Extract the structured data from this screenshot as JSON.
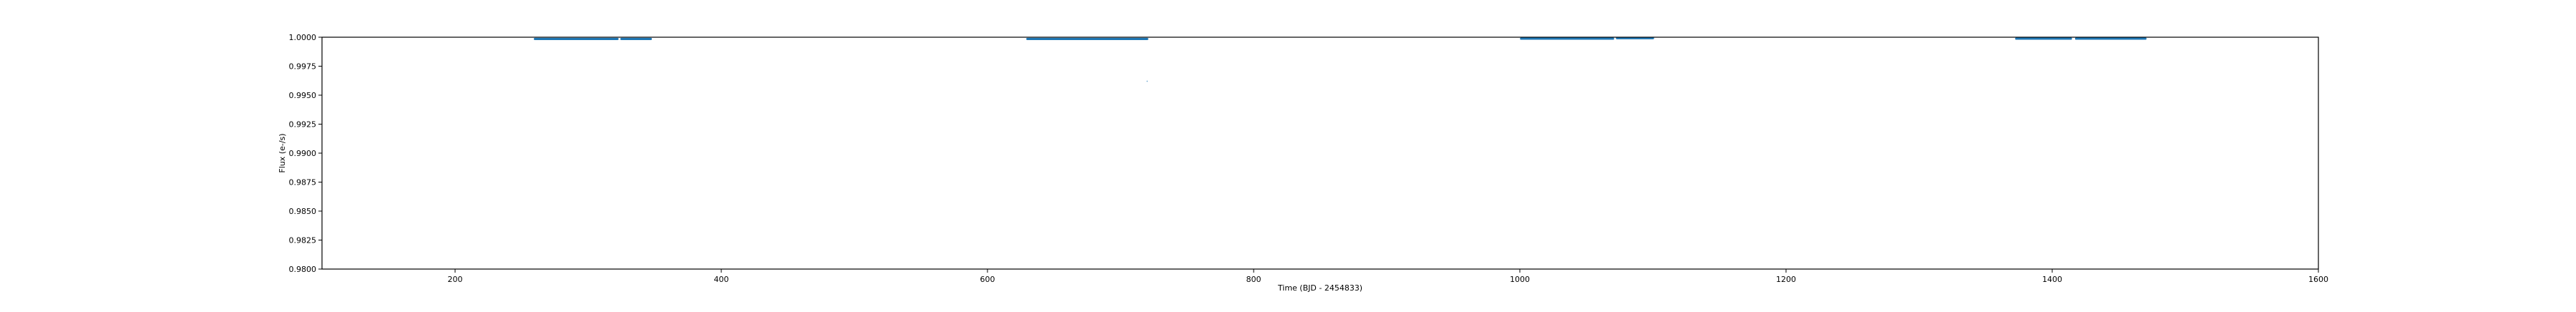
{
  "chart_data": {
    "type": "scatter",
    "title": "",
    "xlabel": "Time (BJD - 2454833)",
    "ylabel": "Flux (e-/s)",
    "xlim": [
      100,
      1600
    ],
    "ylim": [
      0.98,
      1.0
    ],
    "xticks": [
      200,
      400,
      600,
      800,
      1000,
      1200,
      1400,
      1600
    ],
    "yticks": [
      0.98,
      0.9825,
      0.985,
      0.9875,
      0.99,
      0.9925,
      0.995,
      0.9975,
      1.0
    ],
    "ytick_labels": [
      "0.9800",
      "0.9825",
      "0.9850",
      "0.9875",
      "0.9900",
      "0.9925",
      "0.9950",
      "0.9975",
      "1.0000"
    ],
    "xtick_labels": [
      "200",
      "400",
      "600",
      "800",
      "1000",
      "1200",
      "1400",
      "1600"
    ],
    "grid": false,
    "series": [
      {
        "color": "#1f77b4",
        "segments": [
          {
            "x_start": 260,
            "x_end": 322,
            "y": 0.99985
          },
          {
            "x_start": 325,
            "x_end": 347,
            "y": 0.99985
          },
          {
            "x_start": 630,
            "x_end": 720,
            "y": 0.99985
          },
          {
            "x_start": 1001,
            "x_end": 1070,
            "y": 0.99988
          },
          {
            "x_start": 1073,
            "x_end": 1100,
            "y": 0.99992
          },
          {
            "x_start": 1373,
            "x_end": 1414,
            "y": 0.99988
          },
          {
            "x_start": 1418,
            "x_end": 1470,
            "y": 0.99988
          }
        ],
        "outliers": [
          {
            "x": 720,
            "y": 0.9962
          }
        ]
      }
    ]
  }
}
